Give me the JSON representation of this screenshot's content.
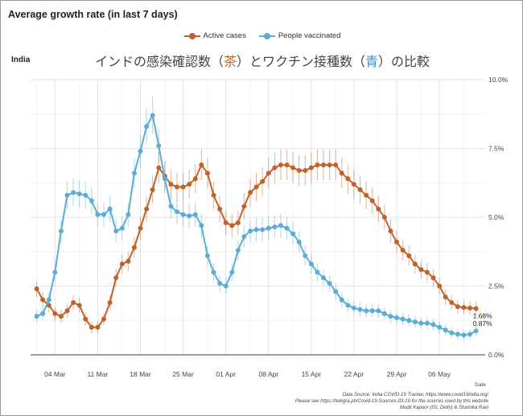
{
  "header": {
    "title": "Average growth rate (in last 7 days)",
    "country": "India",
    "jp_title_parts": [
      "インドの感染確認数（",
      "茶",
      "）とワクチン接種数（",
      "青",
      "）の比較"
    ]
  },
  "source": {
    "line1": "Data Source: India COVID-19 Tracker, https://www.covid19india.org/",
    "line2": "Please see https://telegra.ph/Covid-19-Sources-03-19 for the sources used by this website",
    "line3": "Mudit Kapoor (ISI, Delhi) & Shamika Ravi"
  },
  "chart_data": {
    "type": "line",
    "title": "Average growth rate (in last 7 days)",
    "xlabel": "Date",
    "ylabel": "",
    "x_start": "2021-03-01",
    "x_tick_labels": [
      "04 Mar",
      "11 Mar",
      "18 Mar",
      "25 Mar",
      "01 Apr",
      "08 Apr",
      "15 Apr",
      "22 Apr",
      "29 Apr",
      "06 May"
    ],
    "x_tick_dates": [
      "2021-03-04",
      "2021-03-11",
      "2021-03-18",
      "2021-03-25",
      "2021-04-01",
      "2021-04-08",
      "2021-04-15",
      "2021-04-22",
      "2021-04-29",
      "2021-05-06"
    ],
    "y_ticks": [
      0,
      2.5,
      5.0,
      7.5,
      10.0
    ],
    "y_tick_labels": [
      "0.0%",
      "2.5%",
      "5.0%",
      "7.5%",
      "10.0%"
    ],
    "ylim": [
      0,
      10
    ],
    "grid": true,
    "legend_position": "top",
    "series": [
      {
        "name": "Active cases",
        "color": "#c0622a",
        "end_label": "1.68%",
        "start_date": "2021-03-01",
        "values": [
          2.4,
          2.0,
          1.8,
          1.5,
          1.4,
          1.6,
          1.9,
          1.8,
          1.3,
          1.0,
          1.0,
          1.3,
          1.9,
          2.8,
          3.3,
          3.4,
          3.9,
          4.6,
          5.3,
          6.0,
          6.8,
          6.5,
          6.2,
          6.1,
          6.1,
          6.2,
          6.4,
          6.9,
          6.6,
          5.8,
          5.3,
          4.8,
          4.7,
          4.8,
          5.4,
          5.9,
          6.1,
          6.3,
          6.6,
          6.8,
          6.9,
          6.9,
          6.8,
          6.7,
          6.7,
          6.8,
          6.9,
          6.9,
          6.9,
          6.9,
          6.6,
          6.4,
          6.2,
          6.0,
          5.8,
          5.6,
          5.3,
          5.0,
          4.5,
          4.1,
          3.8,
          3.6,
          3.3,
          3.1,
          3.0,
          2.8,
          2.5,
          2.1,
          1.9,
          1.75,
          1.72,
          1.7,
          1.68
        ]
      },
      {
        "name": "People vaccinated",
        "color": "#5aaed3",
        "end_label": "0.87%",
        "start_date": "2021-03-01",
        "values": [
          1.4,
          1.5,
          2.0,
          3.0,
          4.5,
          5.8,
          5.9,
          5.85,
          5.8,
          5.6,
          5.1,
          5.1,
          5.3,
          4.5,
          4.6,
          5.1,
          6.6,
          7.4,
          8.3,
          8.7,
          7.6,
          6.4,
          5.4,
          5.2,
          5.1,
          5.05,
          5.1,
          4.7,
          3.6,
          3.0,
          2.6,
          2.5,
          3.0,
          3.8,
          4.3,
          4.5,
          4.55,
          4.55,
          4.6,
          4.65,
          4.7,
          4.6,
          4.4,
          4.1,
          3.6,
          3.3,
          3.0,
          2.8,
          2.6,
          2.3,
          2.0,
          1.8,
          1.7,
          1.65,
          1.6,
          1.6,
          1.6,
          1.5,
          1.4,
          1.35,
          1.3,
          1.25,
          1.2,
          1.15,
          1.15,
          1.1,
          1.0,
          0.9,
          0.8,
          0.75,
          0.72,
          0.75,
          0.87
        ]
      }
    ]
  }
}
